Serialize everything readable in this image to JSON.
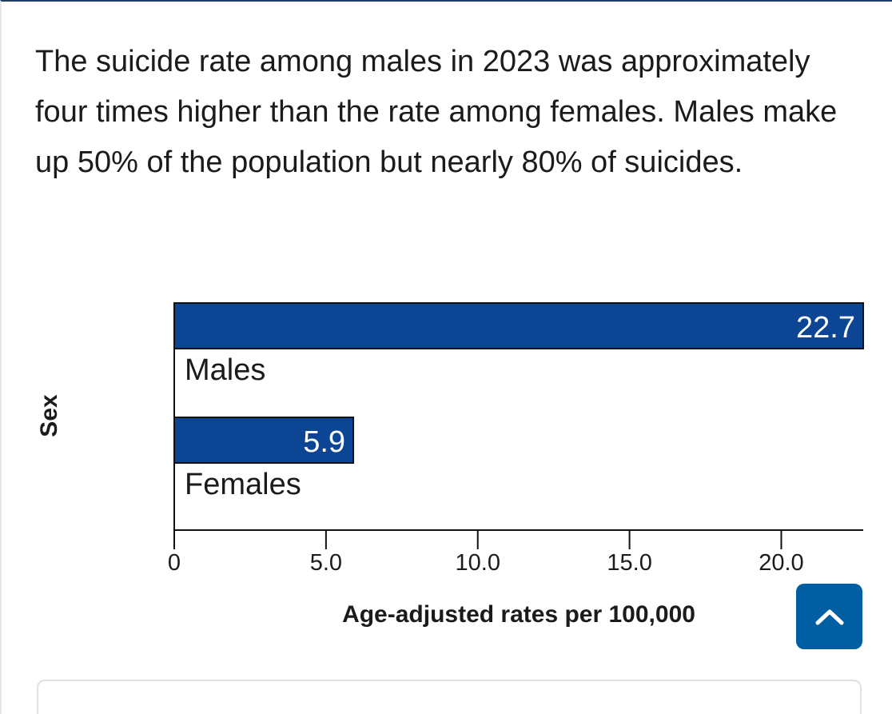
{
  "intro_text": "The suicide rate among males in 2023 was approximately four times higher than the rate among females. Males make up 50% of the population but nearly 80% of suicides.",
  "chart_data": {
    "type": "bar",
    "orientation": "horizontal",
    "categories": [
      "Males",
      "Females"
    ],
    "values": [
      22.7,
      5.9
    ],
    "value_labels": [
      "22.7",
      "5.9"
    ],
    "xlabel": "Age-adjusted rates per 100,000",
    "ylabel": "Sex",
    "xlim": [
      0,
      22.7
    ],
    "xticks": [
      0,
      5.0,
      10.0,
      15.0,
      20.0
    ],
    "xtick_labels": [
      "0",
      "5.0",
      "10.0",
      "15.0",
      "20.0"
    ],
    "bar_color": "#0b4594",
    "grid": false
  },
  "back_to_top": {
    "icon": "chevron-up-icon",
    "color": "#005ea2"
  }
}
